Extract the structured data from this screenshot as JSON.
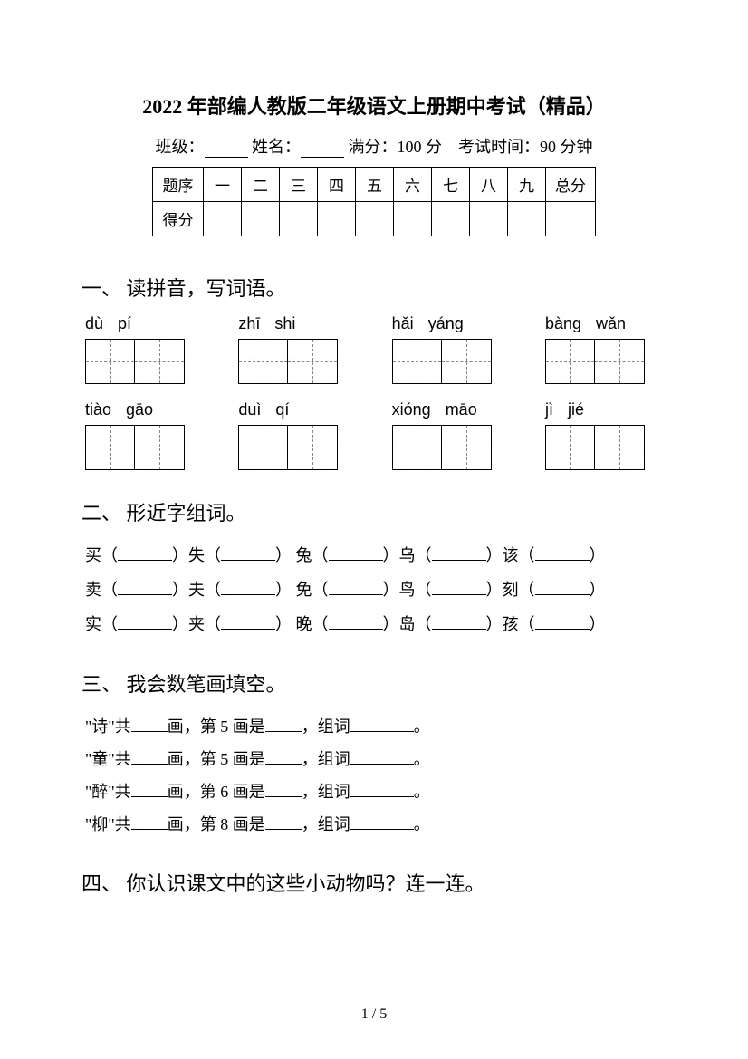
{
  "title": "2022 年部编人教版二年级语文上册期中考试（精品）",
  "info": {
    "class_label": "班级：",
    "name_label": "姓名：",
    "score_label": "满分：",
    "score_value": "100 分",
    "time_label": "考试时间：",
    "time_value": "90 分钟"
  },
  "table": {
    "row1_label": "题序",
    "headers": [
      "一",
      "二",
      "三",
      "四",
      "五",
      "六",
      "七",
      "八",
      "九",
      "总分"
    ],
    "row2_label": "得分"
  },
  "section1": {
    "title": "一、 读拼音，写词语。",
    "row1": [
      {
        "s1": "dù",
        "s2": "pí"
      },
      {
        "s1": "zhī",
        "s2": "shi"
      },
      {
        "s1": "hǎi",
        "s2": "yáng"
      },
      {
        "s1": "bàng",
        "s2": "wǎn"
      }
    ],
    "row2": [
      {
        "s1": "tiào",
        "s2": "gāo"
      },
      {
        "s1": "duì",
        "s2": "qí"
      },
      {
        "s1": "xióng",
        "s2": "māo"
      },
      {
        "s1": "jì",
        "s2": "jié"
      }
    ]
  },
  "section2": {
    "title": "二、 形近字组词。",
    "lines": [
      [
        "买",
        "失",
        "兔",
        "乌",
        "该"
      ],
      [
        "卖",
        "夫",
        "免",
        "鸟",
        "刻"
      ],
      [
        "实",
        "夹",
        "晚",
        "岛",
        "孩"
      ]
    ]
  },
  "section3": {
    "title": "三、 我会数笔画填空。",
    "items": [
      {
        "char": "诗",
        "stroke": "5"
      },
      {
        "char": "童",
        "stroke": "5"
      },
      {
        "char": "醉",
        "stroke": "6"
      },
      {
        "char": "柳",
        "stroke": "8"
      }
    ],
    "tpl_a": "共",
    "tpl_b": "画，第 ",
    "tpl_c": " 画是",
    "tpl_d": "，组词",
    "tpl_e": "。"
  },
  "section4": {
    "title": "四、 你认识课文中的这些小动物吗？连一连。"
  },
  "footer": "1 / 5",
  "colors": {
    "text": "#000000",
    "background": "#ffffff",
    "dash": "#888888"
  }
}
